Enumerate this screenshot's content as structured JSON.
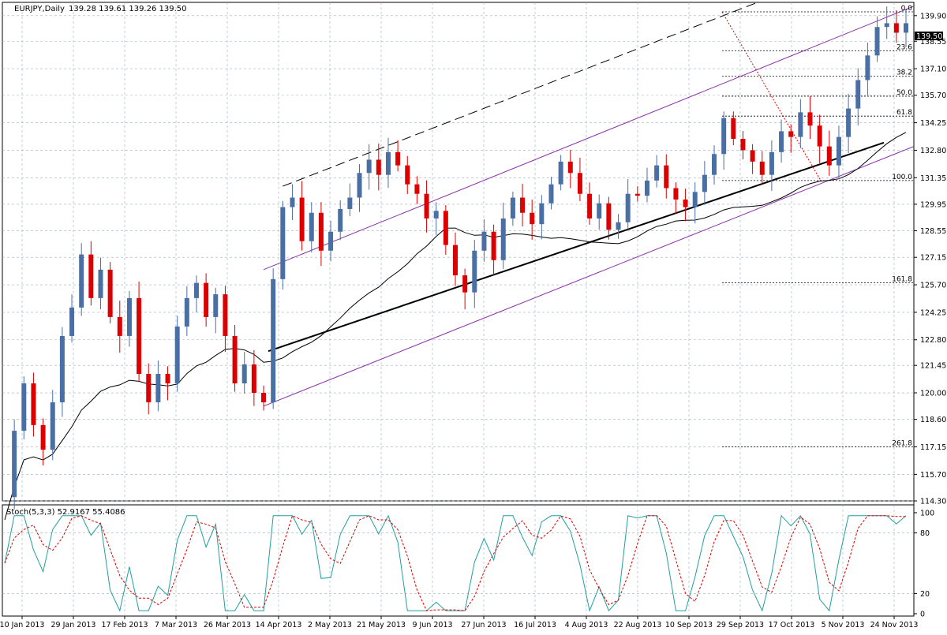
{
  "header": {
    "symbol": "EURJPY,Daily",
    "ohlc": "139.28 139.61 139.26 139.50"
  },
  "indicator": {
    "label": "Stoch(5,3,3) 52.9167 55.4086",
    "levels": [
      "100",
      "80",
      "20",
      "0"
    ]
  },
  "price_tag": "139.50",
  "colors": {
    "bull": "#4a6fa5",
    "bear": "#dd0000",
    "channel": "#8b2fa8",
    "ma": "#000000",
    "stoch_main": "#20a0a0",
    "stoch_signal": "#dd0000",
    "grid": "#9ab0c0"
  },
  "chart_data": {
    "type": "line",
    "price_axis": {
      "ticks": [
        "139.90",
        "138.55",
        "137.10",
        "135.70",
        "134.25",
        "132.80",
        "131.35",
        "129.95",
        "128.55",
        "127.15",
        "125.70",
        "124.25",
        "122.80",
        "121.45",
        "120.00",
        "118.60",
        "117.15",
        "115.70",
        "114.30"
      ],
      "range": [
        114.3,
        140.6
      ]
    },
    "date_axis": {
      "ticks": [
        "10 Jan 2013",
        "29 Jan 2013",
        "17 Feb 2013",
        "7 Mar 2013",
        "26 Mar 2013",
        "14 Apr 2013",
        "2 May 2013",
        "21 May 2013",
        "9 Jun 2013",
        "27 Jun 2013",
        "16 Jul 2013",
        "4 Aug 2013",
        "22 Aug 2013",
        "10 Sep 2013",
        "29 Sep 2013",
        "17 Oct 2013",
        "5 Nov 2013",
        "24 Nov 2013"
      ]
    },
    "fibonacci": {
      "levels": [
        {
          "label": "0.0",
          "price": 140.1
        },
        {
          "label": "23.6",
          "price": 138.05
        },
        {
          "label": "38.2",
          "price": 136.7
        },
        {
          "label": "50.0",
          "price": 135.65
        },
        {
          "label": "61.8",
          "price": 134.6
        },
        {
          "label": "100.0",
          "price": 131.2
        },
        {
          "label": "161.8",
          "price": 125.8
        },
        {
          "label": "261.8",
          "price": 117.15
        }
      ]
    },
    "stoch_range": [
      0,
      100
    ],
    "close_series": [
      114.5,
      118.0,
      120.5,
      118.3,
      117.0,
      119.5,
      123.0,
      124.5,
      127.3,
      125.0,
      126.5,
      124.0,
      123.0,
      125.0,
      121.0,
      119.5,
      121.0,
      120.5,
      123.5,
      125.0,
      125.8,
      124.0,
      125.2,
      123.0,
      120.5,
      121.5,
      120.0,
      119.5,
      126.0,
      129.8,
      130.3,
      128.0,
      129.5,
      127.5,
      128.5,
      129.7,
      130.3,
      131.6,
      132.3,
      131.5,
      132.7,
      132.0,
      131.0,
      130.5,
      129.2,
      129.6,
      127.8,
      126.2,
      125.3,
      127.5,
      128.5,
      127.0,
      129.2,
      130.3,
      129.5,
      128.9,
      130.0,
      131.0,
      132.2,
      131.6,
      130.5,
      129.2,
      130.0,
      128.6,
      129.0,
      130.5,
      130.4,
      131.2,
      132.0,
      130.8,
      130.2,
      129.8,
      130.6,
      131.5,
      132.6,
      134.5,
      133.4,
      132.8,
      132.2,
      131.5,
      132.7,
      133.8,
      133.5,
      134.8,
      134.1,
      133.0,
      132.0,
      133.5,
      135.0,
      136.5,
      137.8,
      139.3,
      139.5,
      139.0,
      139.5
    ]
  }
}
